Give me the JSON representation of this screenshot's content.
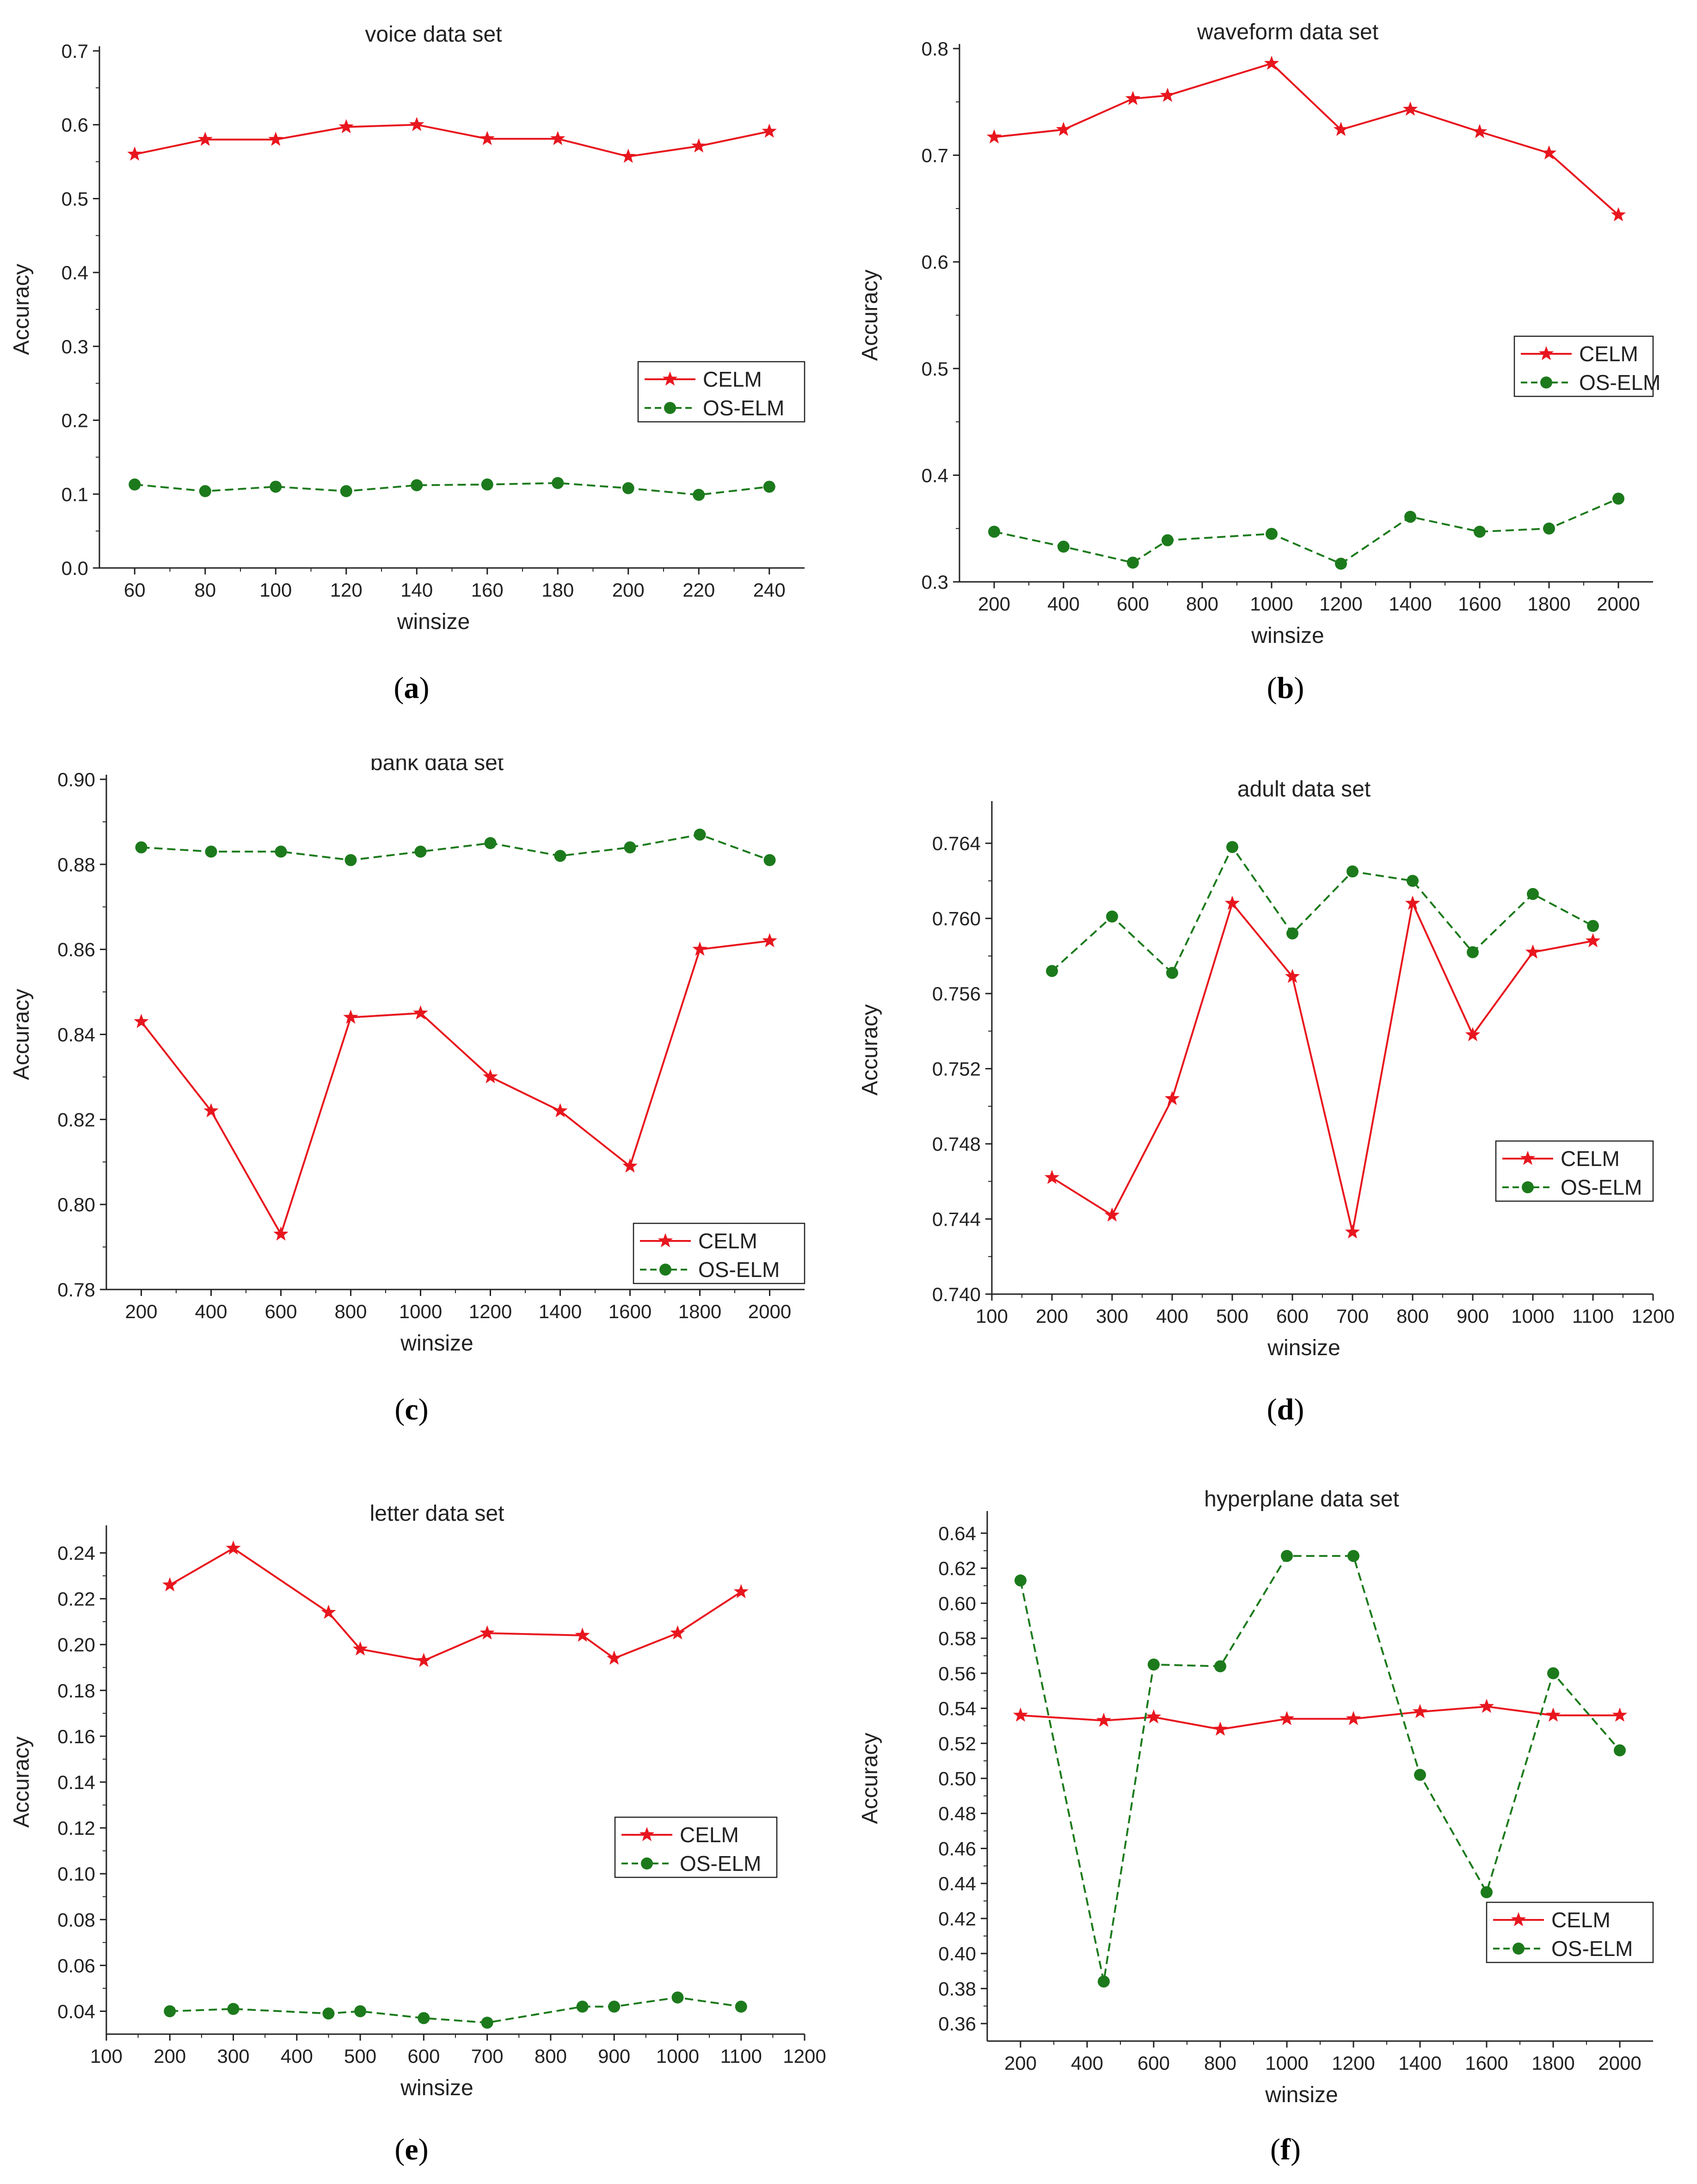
{
  "chart_data": [
    {
      "type": "line",
      "title": "voice data set",
      "caption": "a",
      "xlabel": "winsize",
      "ylabel": "Accuracy",
      "xlim": [
        50,
        250
      ],
      "ylim": [
        0.0,
        0.7
      ],
      "xticks": [
        60,
        80,
        100,
        120,
        140,
        160,
        180,
        200,
        220,
        240
      ],
      "xtick_labels": [
        "60",
        "80",
        "100",
        "120",
        "140",
        "160",
        "180",
        "200",
        "220",
        "240"
      ],
      "yticks": [
        0.0,
        0.1,
        0.2,
        0.3,
        0.4,
        0.5,
        0.6,
        0.7
      ],
      "ytick_labels": [
        "0.0",
        "0.1",
        "0.2",
        "0.3",
        "0.4",
        "0.5",
        "0.6",
        "0.7"
      ],
      "legend": "middle-right",
      "series": [
        {
          "name": "CELM",
          "color": "#e8161e",
          "marker": "star",
          "dash": "solid",
          "x": [
            60,
            80,
            100,
            120,
            140,
            160,
            180,
            200,
            220,
            240
          ],
          "values": [
            0.56,
            0.58,
            0.58,
            0.597,
            0.6,
            0.581,
            0.581,
            0.557,
            0.571,
            0.591
          ]
        },
        {
          "name": "OS-ELM",
          "color": "#1c7a1c",
          "marker": "circle",
          "dash": "dashed",
          "x": [
            60,
            80,
            100,
            120,
            140,
            160,
            180,
            200,
            220,
            240
          ],
          "values": [
            0.113,
            0.104,
            0.11,
            0.104,
            0.112,
            0.113,
            0.115,
            0.108,
            0.099,
            0.11
          ]
        }
      ]
    },
    {
      "type": "line",
      "title": "waveform data set",
      "caption": "b",
      "xlabel": "winsize",
      "ylabel": "Accuracy",
      "xlim": [
        100,
        2100
      ],
      "ylim": [
        0.3,
        0.8
      ],
      "xticks": [
        200,
        400,
        600,
        800,
        1000,
        1200,
        1400,
        1600,
        1800,
        2000
      ],
      "xtick_labels": [
        "200",
        "400",
        "600",
        "800",
        "1000",
        "1200",
        "1400",
        "1600",
        "1800",
        "2000"
      ],
      "yticks": [
        0.3,
        0.4,
        0.5,
        0.6,
        0.7,
        0.8
      ],
      "ytick_labels": [
        "0.3",
        "0.4",
        "0.5",
        "0.6",
        "0.7",
        "0.8"
      ],
      "legend": "middle-right",
      "series": [
        {
          "name": "CELM",
          "color": "#e8161e",
          "marker": "star",
          "dash": "solid",
          "x": [
            200,
            400,
            600,
            700,
            1000,
            1200,
            1400,
            1600,
            1800,
            2000
          ],
          "values": [
            0.717,
            0.724,
            0.753,
            0.756,
            0.786,
            0.724,
            0.743,
            0.722,
            0.702,
            0.644
          ]
        },
        {
          "name": "OS-ELM",
          "color": "#1c7a1c",
          "marker": "circle",
          "dash": "dashed",
          "x": [
            200,
            400,
            600,
            700,
            1000,
            1200,
            1400,
            1600,
            1800,
            2000
          ],
          "values": [
            0.347,
            0.333,
            0.318,
            0.339,
            0.345,
            0.317,
            0.361,
            0.347,
            0.35,
            0.378
          ]
        }
      ]
    },
    {
      "type": "line",
      "title": "bank data set",
      "caption": "c",
      "xlabel": "winsize",
      "ylabel": "Accuracy",
      "xlim": [
        100,
        2100
      ],
      "ylim": [
        0.78,
        0.9
      ],
      "xticks": [
        200,
        400,
        600,
        800,
        1000,
        1200,
        1400,
        1600,
        1800,
        2000
      ],
      "xtick_labels": [
        "200",
        "400",
        "600",
        "800",
        "1000",
        "1200",
        "1400",
        "1600",
        "1800",
        "2000"
      ],
      "yticks": [
        0.78,
        0.8,
        0.82,
        0.84,
        0.86,
        0.88,
        0.9
      ],
      "ytick_labels": [
        "0.78",
        "0.80",
        "0.82",
        "0.84",
        "0.86",
        "0.88",
        "0.90"
      ],
      "legend": "bottom-right",
      "series": [
        {
          "name": "CELM",
          "color": "#e8161e",
          "marker": "star",
          "dash": "solid",
          "x": [
            200,
            400,
            600,
            800,
            1000,
            1200,
            1400,
            1600,
            1800,
            2000
          ],
          "values": [
            0.843,
            0.822,
            0.793,
            0.844,
            0.845,
            0.83,
            0.822,
            0.809,
            0.86,
            0.862
          ]
        },
        {
          "name": "OS-ELM",
          "color": "#1c7a1c",
          "marker": "circle",
          "dash": "dashed",
          "x": [
            200,
            400,
            600,
            800,
            1000,
            1200,
            1400,
            1600,
            1800,
            2000
          ],
          "values": [
            0.884,
            0.883,
            0.883,
            0.881,
            0.883,
            0.885,
            0.882,
            0.884,
            0.887,
            0.881
          ]
        }
      ]
    },
    {
      "type": "line",
      "title": "adult data set",
      "caption": "d",
      "xlabel": "winsize",
      "ylabel": "Accuracy",
      "xlim": [
        100,
        1200
      ],
      "ylim": [
        0.74,
        0.766
      ],
      "xticks": [
        100,
        200,
        300,
        400,
        500,
        600,
        700,
        800,
        900,
        1000,
        1100,
        1200
      ],
      "xtick_labels": [
        "100",
        "200",
        "300",
        "400",
        "500",
        "600",
        "700",
        "800",
        "900",
        "1000",
        "1100",
        "1200"
      ],
      "yticks": [
        0.74,
        0.744,
        0.748,
        0.752,
        0.756,
        0.76,
        0.764
      ],
      "ytick_labels": [
        "0.740",
        "0.744",
        "0.748",
        "0.752",
        "0.756",
        "0.760",
        "0.764"
      ],
      "legend": "bottom-right",
      "series": [
        {
          "name": "CELM",
          "color": "#e8161e",
          "marker": "star",
          "dash": "solid",
          "x": [
            200,
            300,
            400,
            500,
            600,
            700,
            800,
            900,
            1000,
            1100
          ],
          "values": [
            0.7462,
            0.7442,
            0.7504,
            0.7608,
            0.7569,
            0.7433,
            0.7608,
            0.7538,
            0.7582,
            0.7588
          ]
        },
        {
          "name": "OS-ELM",
          "color": "#1c7a1c",
          "marker": "circle",
          "dash": "dashed",
          "x": [
            200,
            300,
            400,
            500,
            600,
            700,
            800,
            900,
            1000,
            1100
          ],
          "values": [
            0.7572,
            0.7601,
            0.7571,
            0.7638,
            0.7592,
            0.7625,
            0.762,
            0.7582,
            0.7613,
            0.7596
          ]
        }
      ]
    },
    {
      "type": "line",
      "title": "letter data set",
      "caption": "e",
      "xlabel": "winsize",
      "ylabel": "Accuracy",
      "xlim": [
        100,
        1200
      ],
      "ylim": [
        0.03,
        0.25
      ],
      "xticks": [
        100,
        200,
        300,
        400,
        500,
        600,
        700,
        800,
        900,
        1000,
        1100,
        1200
      ],
      "xtick_labels": [
        "100",
        "200",
        "300",
        "400",
        "500",
        "600",
        "700",
        "800",
        "900",
        "1000",
        "1100",
        "1200"
      ],
      "yticks": [
        0.04,
        0.06,
        0.08,
        0.1,
        0.12,
        0.14,
        0.16,
        0.18,
        0.2,
        0.22,
        0.24
      ],
      "ytick_labels": [
        "0.04",
        "0.06",
        "0.08",
        "0.10",
        "0.12",
        "0.14",
        "0.16",
        "0.18",
        "0.20",
        "0.22",
        "0.24"
      ],
      "legend": "middle-right",
      "series": [
        {
          "name": "CELM",
          "color": "#e8161e",
          "marker": "star",
          "dash": "solid",
          "x": [
            200,
            300,
            450,
            500,
            600,
            700,
            850,
            900,
            1000,
            1100
          ],
          "values": [
            0.226,
            0.242,
            0.214,
            0.198,
            0.193,
            0.205,
            0.204,
            0.194,
            0.205,
            0.223
          ]
        },
        {
          "name": "OS-ELM",
          "color": "#1c7a1c",
          "marker": "circle",
          "dash": "dashed",
          "x": [
            200,
            300,
            450,
            500,
            600,
            700,
            850,
            900,
            1000,
            1100
          ],
          "values": [
            0.04,
            0.041,
            0.039,
            0.04,
            0.037,
            0.035,
            0.042,
            0.042,
            0.046,
            0.042
          ]
        }
      ]
    },
    {
      "type": "line",
      "title": "hyperplane data set",
      "caption": "f",
      "xlabel": "winsize",
      "ylabel": "Accuracy",
      "xlim": [
        100,
        2100
      ],
      "ylim": [
        0.35,
        0.65
      ],
      "xticks": [
        200,
        400,
        600,
        800,
        1000,
        1200,
        1400,
        1600,
        1800,
        2000
      ],
      "xtick_labels": [
        "200",
        "400",
        "600",
        "800",
        "1000",
        "1200",
        "1400",
        "1600",
        "1800",
        "2000"
      ],
      "yticks": [
        0.36,
        0.38,
        0.4,
        0.42,
        0.44,
        0.46,
        0.48,
        0.5,
        0.52,
        0.54,
        0.56,
        0.58,
        0.6,
        0.62,
        0.64
      ],
      "ytick_labels": [
        "0.36",
        "0.38",
        "0.40",
        "0.42",
        "0.44",
        "0.46",
        "0.48",
        "0.50",
        "0.52",
        "0.54",
        "0.56",
        "0.58",
        "0.60",
        "0.62",
        "0.64"
      ],
      "legend": "bottom-right",
      "series": [
        {
          "name": "CELM",
          "color": "#e8161e",
          "marker": "star",
          "dash": "solid",
          "x": [
            200,
            450,
            600,
            800,
            1000,
            1200,
            1400,
            1600,
            1800,
            2000
          ],
          "values": [
            0.536,
            0.533,
            0.535,
            0.528,
            0.534,
            0.534,
            0.538,
            0.541,
            0.536,
            0.536
          ]
        },
        {
          "name": "OS-ELM",
          "color": "#1c7a1c",
          "marker": "circle",
          "dash": "dashed",
          "x": [
            200,
            450,
            600,
            800,
            1000,
            1200,
            1400,
            1600,
            1800,
            2000
          ],
          "values": [
            0.613,
            0.384,
            0.565,
            0.564,
            0.627,
            0.627,
            0.502,
            0.435,
            0.56,
            0.516
          ]
        }
      ]
    }
  ]
}
